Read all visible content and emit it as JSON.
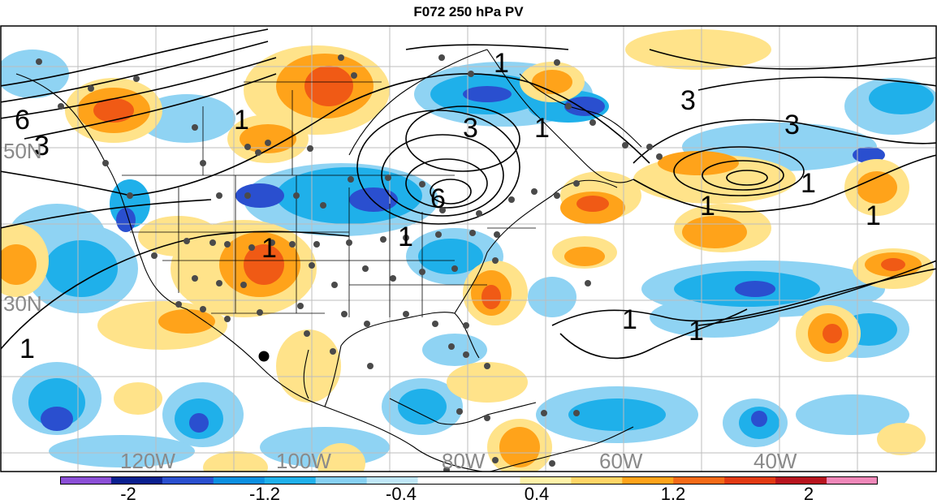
{
  "title": "F072 250 hPa PV",
  "map": {
    "lat_labels": [
      "50N",
      "30N"
    ],
    "lon_labels": [
      "120W",
      "100W",
      "80W",
      "60W",
      "40W"
    ],
    "contour_labels": [
      "6",
      "3",
      "1",
      "1",
      "3",
      "1",
      "6",
      "1",
      "1",
      "1",
      "3",
      "3",
      "1",
      "1",
      "1",
      "1",
      "1"
    ]
  },
  "colorbar": {
    "labels": [
      "-2",
      "-1.2",
      "-0.4",
      "0.4",
      "1.2",
      "2"
    ],
    "colors": [
      "#8b4fd6",
      "#0a1f8f",
      "#2a4fcf",
      "#0b8fe0",
      "#1fb0ea",
      "#86d0f2",
      "#bfe6f7",
      "#ffffff",
      "#ffffff",
      "#fff2a8",
      "#ffd566",
      "#ffa31a",
      "#f46a17",
      "#e23a12",
      "#b8141e",
      "#ee87b8"
    ]
  }
}
